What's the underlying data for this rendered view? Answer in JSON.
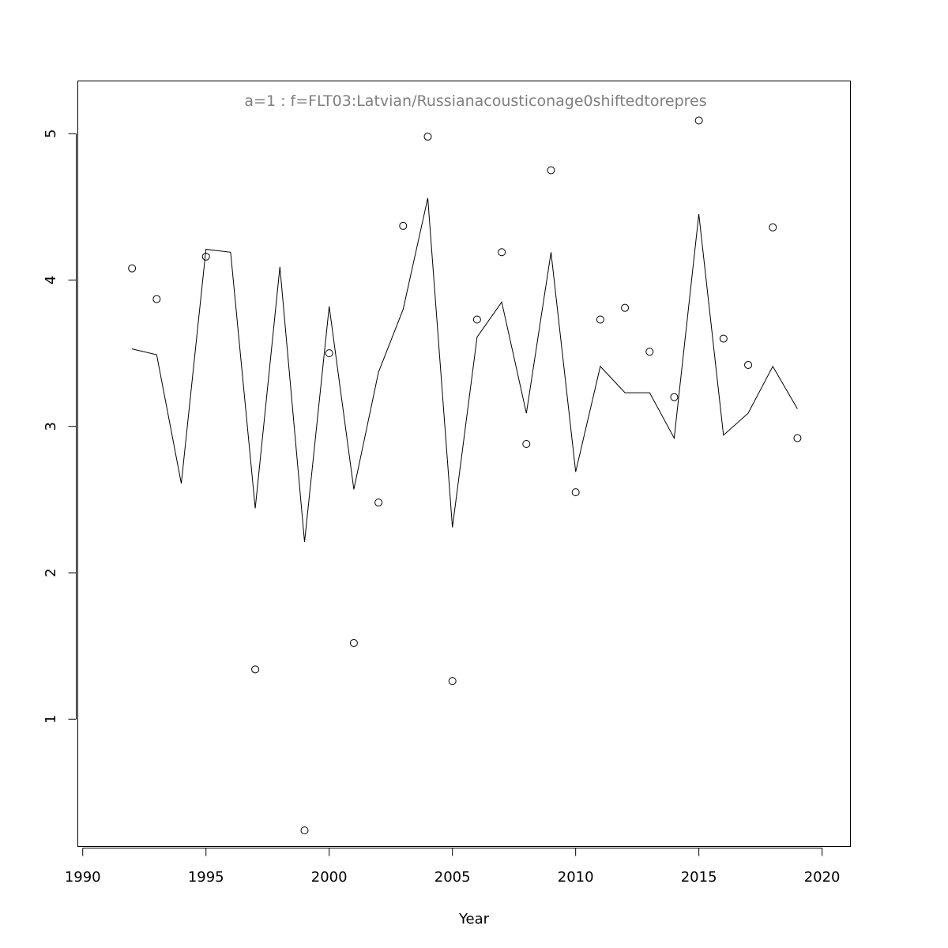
{
  "chart_data": {
    "type": "line",
    "title": "a=1  :  f=FLT03:Latvian/Russianacousticonage0shiftedtorepres",
    "xlabel": "Year",
    "ylabel": "",
    "xlim": [
      1989.8,
      2021.15
    ],
    "ylim": [
      0.13,
      5.36
    ],
    "x_ticks": [
      1990,
      1995,
      2000,
      2005,
      2010,
      2015,
      2020
    ],
    "y_ticks": [
      1,
      2,
      3,
      4,
      5
    ],
    "grid": false,
    "legend": "none",
    "series": [
      {
        "style": "points",
        "marker": "open-circle",
        "x": [
          1992,
          1993,
          1995,
          1997,
          1999,
          2000,
          2001,
          2002,
          2003,
          2004,
          2005,
          2006,
          2007,
          2008,
          2009,
          2010,
          2011,
          2012,
          2013,
          2014,
          2015,
          2016,
          2017,
          2018,
          2019
        ],
        "values": [
          4.08,
          3.87,
          4.16,
          1.34,
          0.24,
          3.5,
          1.52,
          2.48,
          4.37,
          4.98,
          1.26,
          3.73,
          4.19,
          2.88,
          4.75,
          2.55,
          3.73,
          3.81,
          3.51,
          3.2,
          5.09,
          3.6,
          3.42,
          4.36,
          2.92
        ]
      },
      {
        "style": "line",
        "color": "#000000",
        "x": [
          1992,
          1993,
          1994,
          1995,
          1996,
          1997,
          1998,
          1999,
          2000,
          2001,
          2002,
          2003,
          2004,
          2005,
          2006,
          2007,
          2008,
          2009,
          2010,
          2011,
          2012,
          2013,
          2014,
          2015,
          2016,
          2017,
          2018,
          2019
        ],
        "values": [
          3.53,
          3.49,
          2.61,
          4.21,
          4.19,
          2.44,
          4.09,
          2.21,
          3.82,
          2.57,
          3.37,
          3.8,
          4.56,
          2.31,
          3.61,
          3.85,
          3.09,
          4.19,
          2.69,
          3.41,
          3.23,
          3.23,
          2.92,
          4.45,
          2.94,
          3.09,
          3.41,
          3.12
        ]
      }
    ]
  }
}
